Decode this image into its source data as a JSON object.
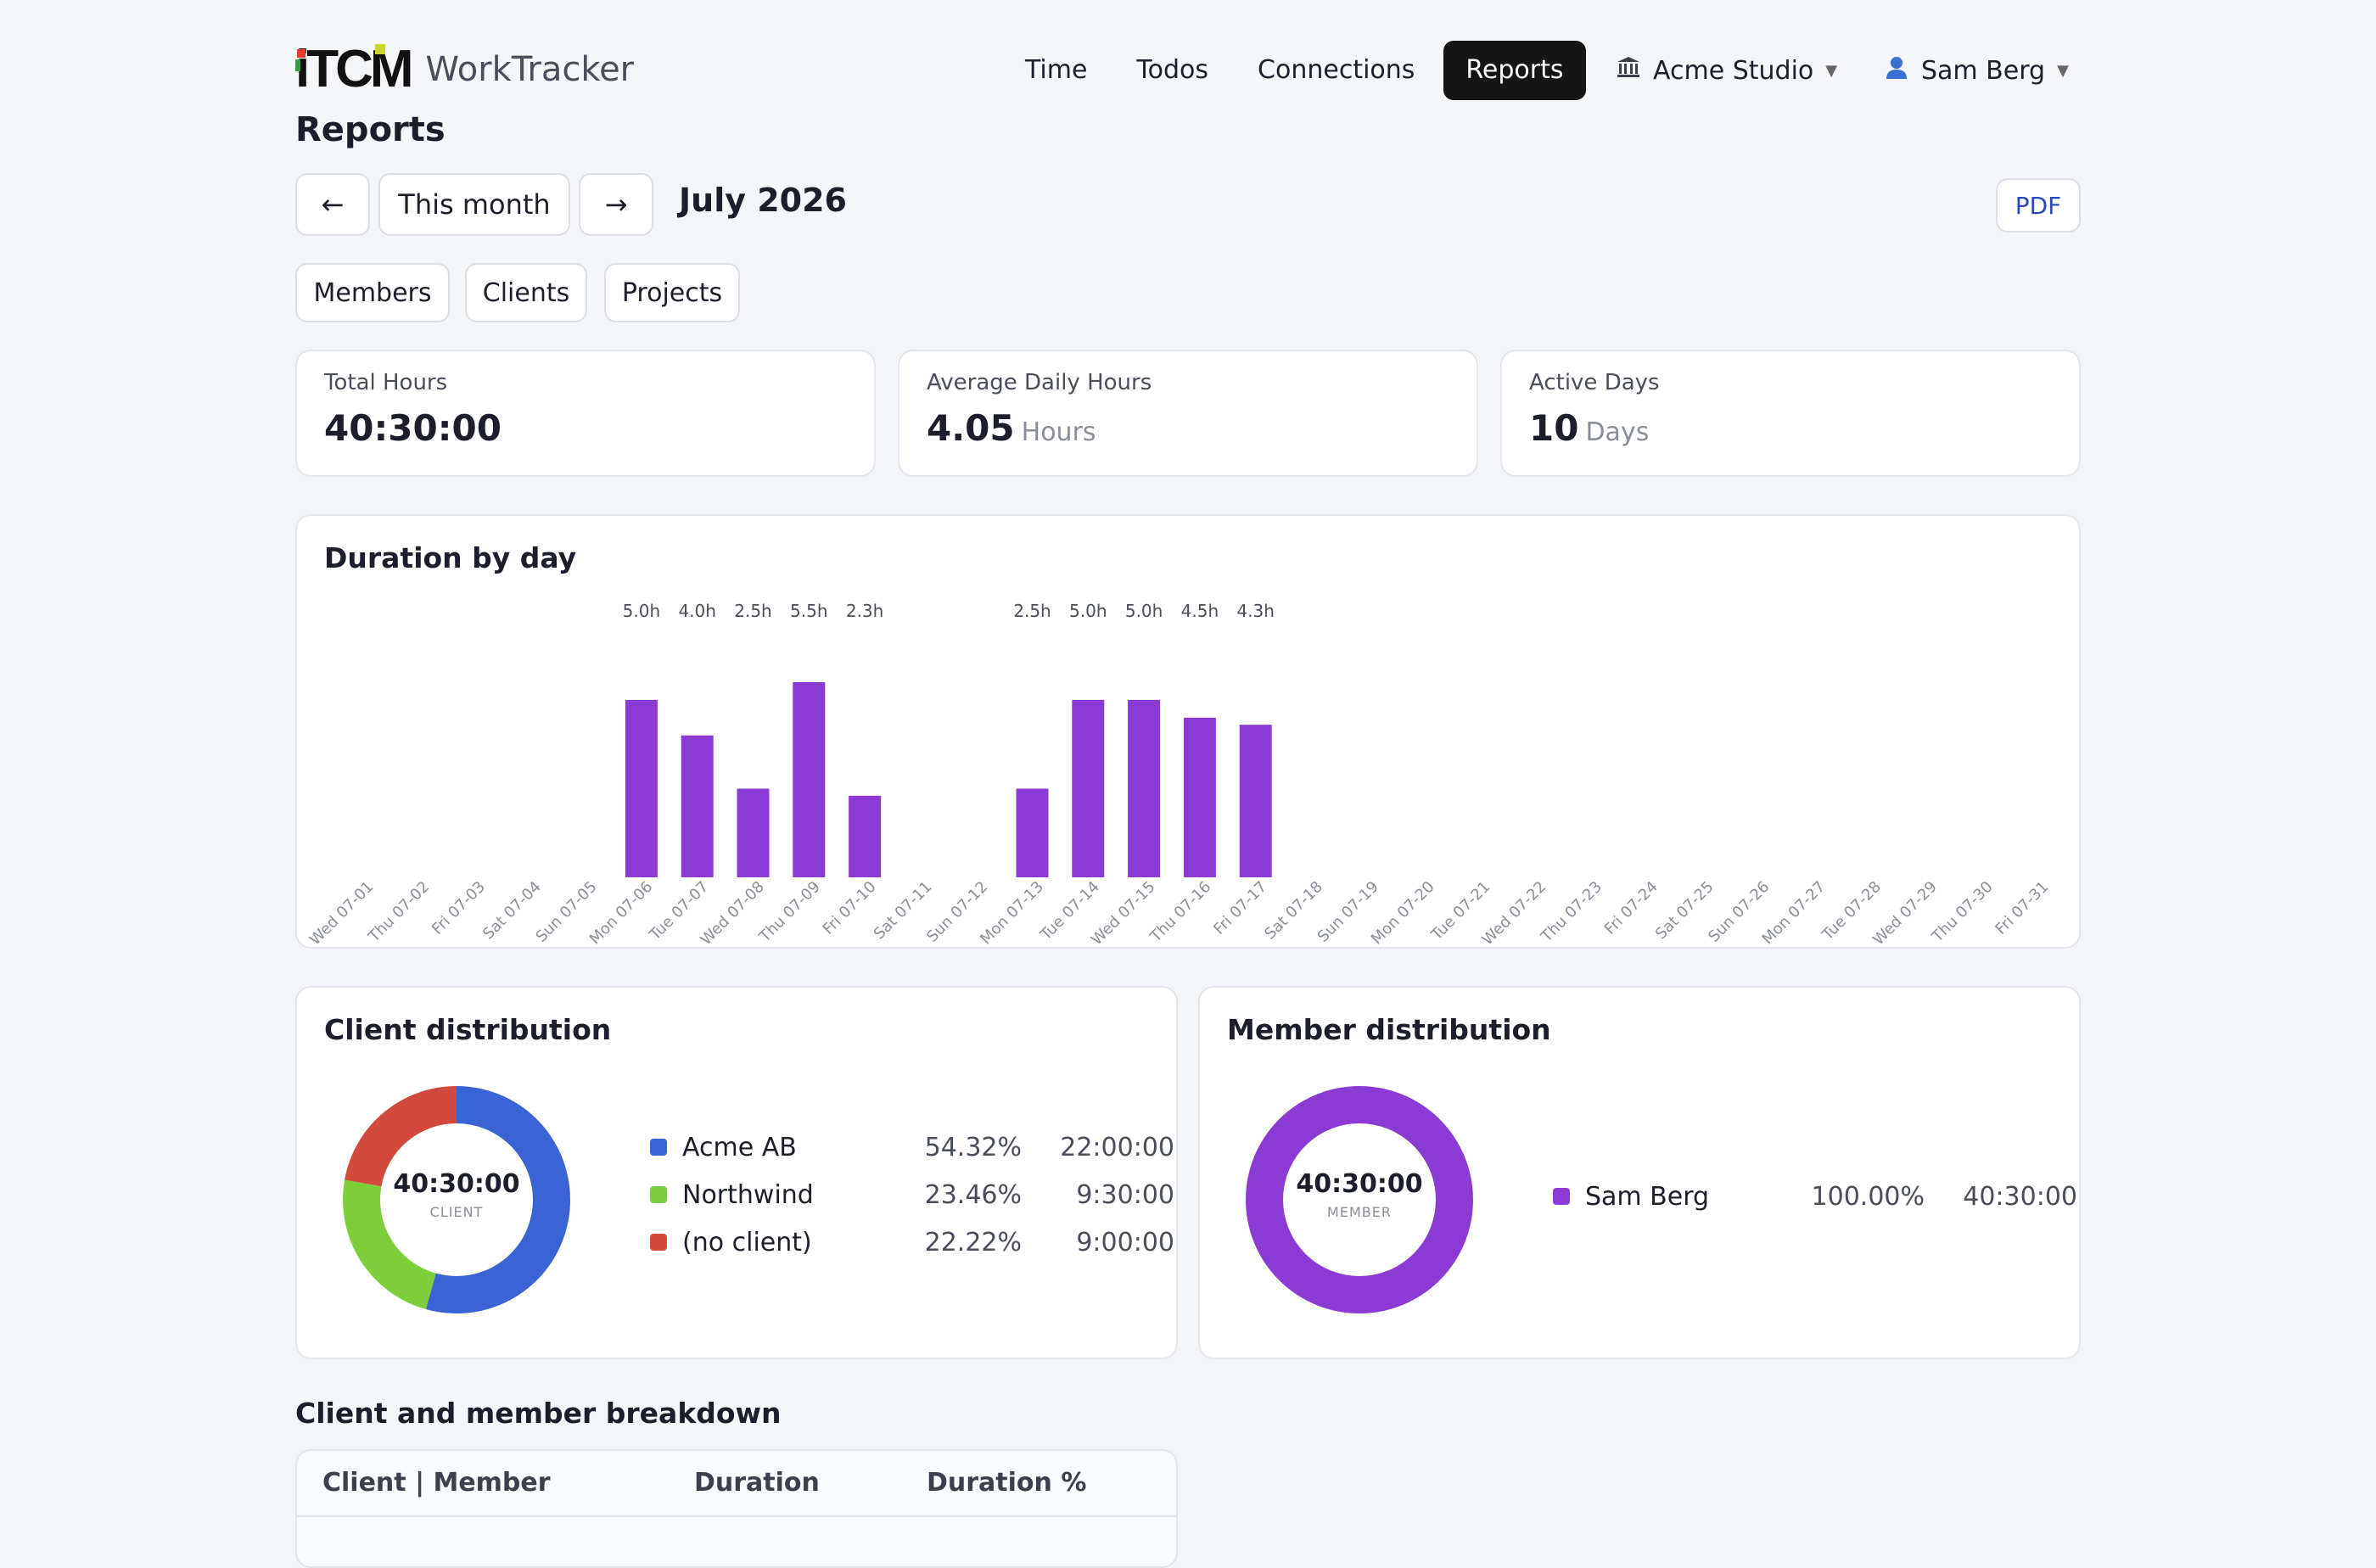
{
  "header": {
    "logo_text": "iTCM",
    "app_name": "WorkTracker",
    "nav": [
      "Time",
      "Todos",
      "Connections",
      "Reports"
    ],
    "active_nav": "Reports",
    "workspace": "Acme Studio",
    "user": "Sam Berg"
  },
  "page": {
    "title": "Reports",
    "prev_label": "←",
    "period_label": "This month",
    "next_label": "→",
    "month": "July 2026",
    "pdf_label": "PDF",
    "filters": [
      "Members",
      "Clients",
      "Projects"
    ]
  },
  "stats": {
    "total": {
      "label": "Total Hours",
      "value": "40:30:00"
    },
    "average": {
      "label": "Average Daily Hours",
      "value": "4.05",
      "unit": "Hours"
    },
    "active": {
      "label": "Active Days",
      "value": "10",
      "unit": "Days"
    }
  },
  "chart_data": [
    {
      "type": "bar",
      "title": "Duration by day",
      "categories": [
        "Wed 07-01",
        "Thu 07-02",
        "Fri 07-03",
        "Sat 07-04",
        "Sun 07-05",
        "Mon 07-06",
        "Tue 07-07",
        "Wed 07-08",
        "Thu 07-09",
        "Fri 07-10",
        "Sat 07-11",
        "Sun 07-12",
        "Mon 07-13",
        "Tue 07-14",
        "Wed 07-15",
        "Thu 07-16",
        "Fri 07-17",
        "Sat 07-18",
        "Sun 07-19",
        "Mon 07-20",
        "Tue 07-21",
        "Wed 07-22",
        "Thu 07-23",
        "Fri 07-24",
        "Sat 07-25",
        "Sun 07-26",
        "Mon 07-27",
        "Tue 07-28",
        "Wed 07-29",
        "Thu 07-30",
        "Fri 07-31"
      ],
      "values": [
        0,
        0,
        0,
        0,
        0,
        5.0,
        4.0,
        2.5,
        5.5,
        2.3,
        0,
        0,
        2.5,
        5.0,
        5.0,
        4.5,
        4.3,
        0,
        0,
        0,
        0,
        0,
        0,
        0,
        0,
        0,
        0,
        0,
        0,
        0,
        0
      ],
      "labels": [
        "",
        "",
        "",
        "",
        "",
        "5.0h",
        "4.0h",
        "2.5h",
        "5.5h",
        "2.3h",
        "",
        "",
        "2.5h",
        "5.0h",
        "5.0h",
        "4.5h",
        "4.3h",
        "",
        "",
        "",
        "",
        "",
        "",
        "",
        "",
        "",
        "",
        "",
        "",
        "",
        ""
      ],
      "color": "#8b3bd4",
      "grid": false
    },
    {
      "type": "pie",
      "title": "Client distribution",
      "center_value": "40:30:00",
      "center_label": "CLIENT",
      "slices": [
        {
          "name": "Acme AB",
          "pct": "54.32%",
          "value": 54.32,
          "duration": "22:00:00",
          "color": "#3a63d4"
        },
        {
          "name": "Northwind",
          "pct": "23.46%",
          "value": 23.46,
          "duration": "9:30:00",
          "color": "#7ccf3a"
        },
        {
          "name": "(no client)",
          "pct": "22.22%",
          "value": 22.22,
          "duration": "9:00:00",
          "color": "#d14a3b"
        }
      ]
    },
    {
      "type": "pie",
      "title": "Member distribution",
      "center_value": "40:30:00",
      "center_label": "MEMBER",
      "slices": [
        {
          "name": "Sam Berg",
          "pct": "100.00%",
          "value": 100,
          "duration": "40:30:00",
          "color": "#8b3bd4"
        }
      ]
    }
  ],
  "breakdown": {
    "title": "Client and member breakdown",
    "columns": [
      "Client | Member",
      "Duration",
      "Duration %"
    ]
  }
}
